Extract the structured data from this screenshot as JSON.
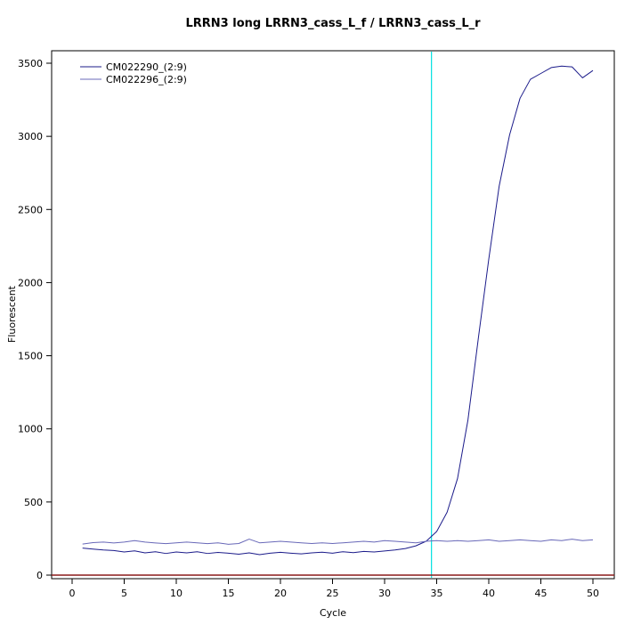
{
  "chart_data": {
    "type": "line",
    "title": "LRRN3 long LRRN3_cass_L_f / LRRN3_cass_L_r",
    "xlabel": "Cycle",
    "ylabel": "Fluorescent",
    "xlim": [
      0,
      50
    ],
    "ylim": [
      0,
      3500
    ],
    "xticks": [
      0,
      5,
      10,
      15,
      20,
      25,
      30,
      35,
      40,
      45,
      50
    ],
    "yticks": [
      0,
      500,
      1000,
      1500,
      2000,
      2500,
      3000,
      3500
    ],
    "grid": false,
    "legend_position": "top-left",
    "threshold_x": 34.5,
    "baseline_y": 0,
    "colors": {
      "series1": "#1b1b8a",
      "series2": "#6868b8",
      "threshold": "#00e0e0",
      "baseline": "#8b1a1a",
      "axis": "#000000"
    },
    "x": [
      1,
      2,
      3,
      4,
      5,
      6,
      7,
      8,
      9,
      10,
      11,
      12,
      13,
      14,
      15,
      16,
      17,
      18,
      19,
      20,
      21,
      22,
      23,
      24,
      25,
      26,
      27,
      28,
      29,
      30,
      31,
      32,
      33,
      34,
      35,
      36,
      37,
      38,
      39,
      40,
      41,
      42,
      43,
      44,
      45,
      46,
      47,
      48,
      49,
      50
    ],
    "series": [
      {
        "name": "CM022290_(2:9)",
        "color_key": "series1",
        "values": [
          185,
          178,
          172,
          168,
          158,
          166,
          152,
          160,
          148,
          158,
          152,
          160,
          148,
          155,
          150,
          143,
          152,
          140,
          150,
          156,
          150,
          145,
          152,
          157,
          150,
          160,
          154,
          162,
          158,
          165,
          172,
          182,
          200,
          232,
          298,
          430,
          660,
          1060,
          1620,
          2160,
          2660,
          3010,
          3260,
          3390,
          3430,
          3470,
          3480,
          3475,
          3400,
          3450
        ]
      },
      {
        "name": "CM022296_(2:9)",
        "color_key": "series2",
        "values": [
          212,
          222,
          226,
          220,
          226,
          236,
          226,
          220,
          215,
          221,
          226,
          221,
          215,
          221,
          211,
          216,
          246,
          221,
          226,
          231,
          226,
          221,
          216,
          221,
          216,
          221,
          226,
          231,
          226,
          236,
          231,
          226,
          221,
          231,
          236,
          231,
          236,
          231,
          236,
          241,
          231,
          236,
          241,
          236,
          231,
          241,
          236,
          246,
          236,
          241
        ]
      }
    ]
  }
}
